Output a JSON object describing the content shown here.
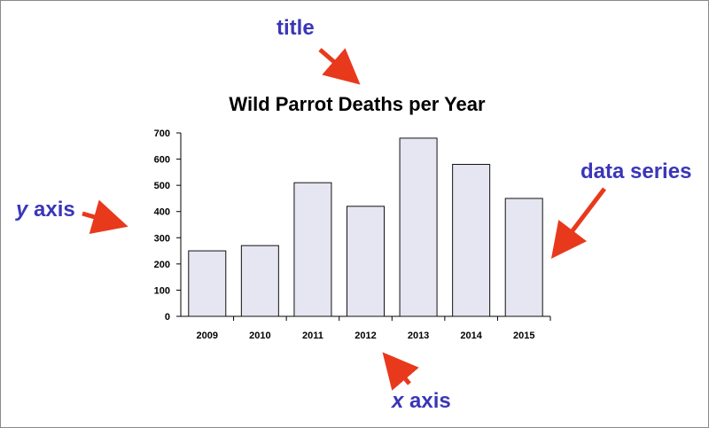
{
  "annotations": {
    "title": "title",
    "y_axis_var": "y",
    "y_axis_word": "axis",
    "x_axis_var": "x",
    "x_axis_word": "axis",
    "data_series": "data series"
  },
  "colors": {
    "annotation_text": "#3a36b8",
    "arrow": "#e8391d",
    "bar_fill": "#e6e6f2",
    "bar_stroke": "#111111"
  },
  "chart_data": {
    "type": "bar",
    "title": "Wild Parrot Deaths per Year",
    "categories": [
      "2009",
      "2010",
      "2011",
      "2012",
      "2013",
      "2014",
      "2015"
    ],
    "values": [
      250,
      270,
      510,
      420,
      680,
      580,
      450
    ],
    "xlabel": "",
    "ylabel": "",
    "ylim": [
      0,
      700
    ],
    "yticks": [
      0,
      100,
      200,
      300,
      400,
      500,
      600,
      700
    ],
    "grid": false,
    "legend": "none"
  }
}
